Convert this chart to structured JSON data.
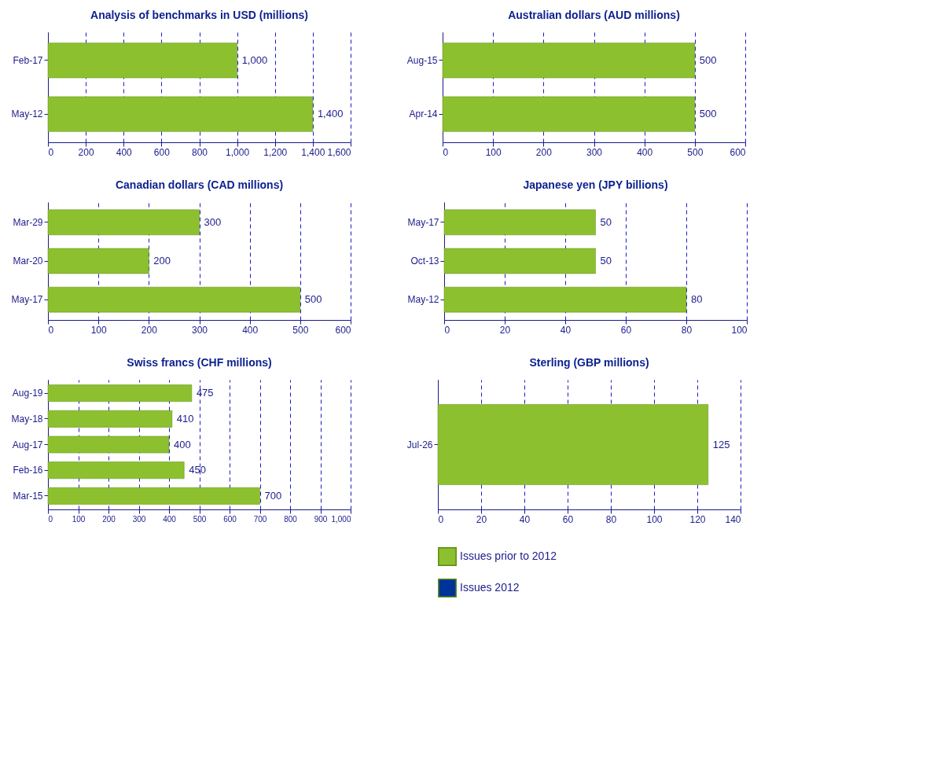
{
  "chart_data": [
    {
      "type": "bar",
      "orientation": "horizontal",
      "title": "Analysis of benchmarks in USD (millions)",
      "categories": [
        "Feb-17",
        "May-12"
      ],
      "values": [
        1000,
        1400
      ],
      "value_labels": [
        "1,000",
        "1,400"
      ],
      "color": "#8dc02f",
      "xlim": [
        0,
        1600
      ],
      "xticks": [
        0,
        200,
        400,
        600,
        800,
        {
          "value": 1000,
          "label": "1,000"
        },
        {
          "value": 1200,
          "label": "1,200"
        },
        {
          "value": 1400,
          "label": "1,400"
        },
        {
          "value": 1600,
          "label": "1,600"
        }
      ],
      "grid": "x",
      "data_labels": true
    },
    {
      "type": "bar",
      "orientation": "horizontal",
      "title": "Australian dollars (AUD millions)",
      "categories": [
        "Aug-15",
        "Apr-14"
      ],
      "values": [
        500,
        500
      ],
      "color": "#8dc02f",
      "xlim": [
        0,
        600
      ],
      "xticks": [
        0,
        100,
        200,
        300,
        400,
        500,
        600
      ],
      "grid": "x",
      "data_labels": true
    },
    {
      "type": "bar",
      "orientation": "horizontal",
      "title": "Canadian dollars (CAD millions)",
      "categories": [
        "Mar-29",
        "Mar-20",
        "May-17"
      ],
      "values": [
        300,
        200,
        500
      ],
      "color": "#8dc02f",
      "xlim": [
        0,
        600
      ],
      "xticks": [
        0,
        100,
        200,
        300,
        400,
        500,
        600
      ],
      "grid": "x",
      "data_labels": true
    },
    {
      "type": "bar",
      "orientation": "horizontal",
      "title": "Japanese yen (JPY billions)",
      "categories": [
        "May-17",
        "Oct-13",
        "May-12"
      ],
      "values": [
        50,
        50,
        80
      ],
      "color": "#8dc02f",
      "xlim": [
        0,
        100
      ],
      "xticks": [
        0,
        20,
        40,
        60,
        80,
        100
      ],
      "grid": "x",
      "data_labels": true
    },
    {
      "type": "bar",
      "orientation": "horizontal",
      "title": "Swiss francs (CHF millions)",
      "categories": [
        "Aug-19",
        "May-18",
        "Aug-17",
        "Feb-16",
        "Mar-15"
      ],
      "values": [
        475,
        410,
        400,
        450,
        700
      ],
      "color": "#8dc02f",
      "xlim": [
        0,
        1000
      ],
      "xticks": [
        0,
        100,
        200,
        300,
        400,
        500,
        600,
        700,
        800,
        900,
        {
          "value": 1000,
          "label": "1,000"
        }
      ],
      "grid": "x",
      "data_labels": true
    },
    {
      "type": "bar",
      "orientation": "horizontal",
      "title": "Sterling  (GBP millions)",
      "categories": [
        "Jul-26"
      ],
      "series": [
        {
          "name": "Issues prior to 2012",
          "color": "#8dc02f",
          "values": [
            125
          ]
        },
        {
          "name": "Issues 2012",
          "color": "#003399",
          "values": [
            null
          ]
        }
      ],
      "xlim": [
        0,
        140
      ],
      "xticks": [
        0,
        20,
        40,
        60,
        80,
        100,
        120,
        140
      ],
      "grid": "x",
      "legend": "bottom",
      "data_labels": true
    }
  ]
}
